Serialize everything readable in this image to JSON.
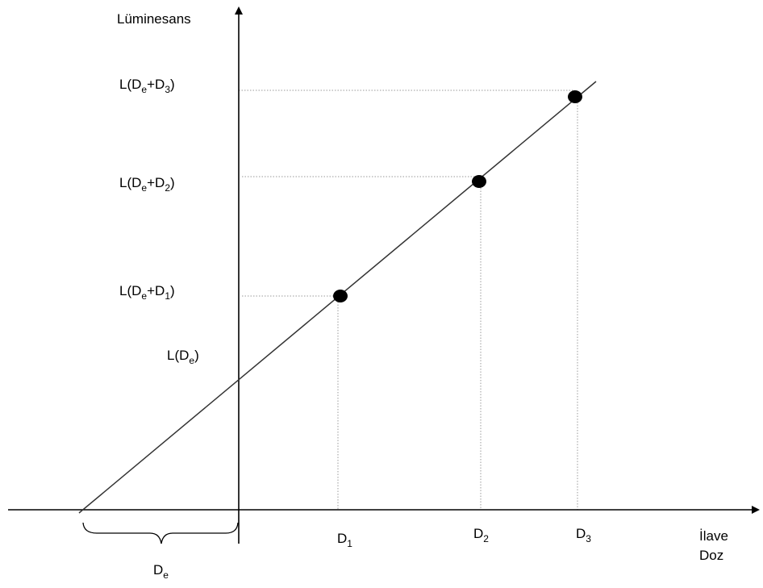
{
  "axes": {
    "y_label": "Lüminesans",
    "x_label_line1": "İlave",
    "x_label_line2": "Doz"
  },
  "y_labels": [
    {
      "main": "L(D",
      "sub1": "e",
      "mid": "+D",
      "sub2": "3",
      "end": ")"
    },
    {
      "main": "L(D",
      "sub1": "e",
      "mid": "+D",
      "sub2": "2",
      "end": ")"
    },
    {
      "main": "L(D",
      "sub1": "e",
      "mid": "+D",
      "sub2": "1",
      "end": ")"
    },
    {
      "main": "L(D",
      "sub1": "e",
      "end": ")"
    }
  ],
  "x_labels": [
    {
      "main": "D",
      "sub": "1"
    },
    {
      "main": "D",
      "sub": "2"
    },
    {
      "main": "D",
      "sub": "3"
    }
  ],
  "de_label": {
    "main": "D",
    "sub": "e"
  },
  "colors": {
    "ink": "#000000",
    "guide": "#9a9a9a",
    "line": "#333333"
  }
}
